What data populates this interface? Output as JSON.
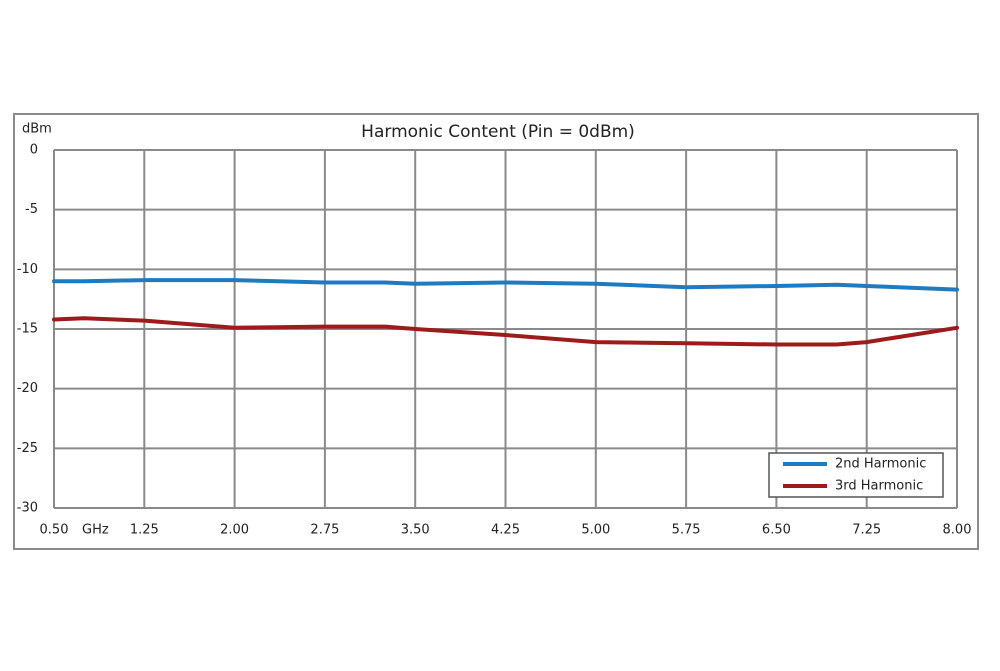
{
  "chart_data": {
    "type": "line",
    "title": "Harmonic Content (Pin = 0dBm)",
    "x_label": "GHz",
    "y_label": "dBm",
    "x": [
      0.5,
      0.75,
      1.25,
      2.0,
      2.75,
      3.25,
      3.5,
      4.25,
      5.0,
      5.75,
      6.5,
      7.0,
      7.25,
      8.0
    ],
    "series": [
      {
        "name": "2nd Harmonic",
        "color": "#1f7bc1",
        "values": [
          -11.0,
          -11.0,
          -10.9,
          -10.9,
          -11.1,
          -11.1,
          -11.2,
          -11.1,
          -11.2,
          -11.5,
          -11.4,
          -11.3,
          -11.4,
          -11.7
        ]
      },
      {
        "name": "3rd Harmonic",
        "color": "#9e1b1b",
        "values": [
          -14.2,
          -14.1,
          -14.3,
          -14.9,
          -14.8,
          -14.8,
          -15.0,
          -15.5,
          -16.1,
          -16.2,
          -16.3,
          -16.3,
          -16.1,
          -14.9
        ]
      }
    ],
    "xlim": [
      0.5,
      8.0
    ],
    "xticks": [
      {
        "value": 0.5,
        "label": "0.50"
      },
      {
        "value": 1.25,
        "label": "1.25"
      },
      {
        "value": 2.0,
        "label": "2.00"
      },
      {
        "value": 2.75,
        "label": "2.75"
      },
      {
        "value": 3.5,
        "label": "3.50"
      },
      {
        "value": 4.25,
        "label": "4.25"
      },
      {
        "value": 5.0,
        "label": "5.00"
      },
      {
        "value": 5.75,
        "label": "5.75"
      },
      {
        "value": 6.5,
        "label": "6.50"
      },
      {
        "value": 7.25,
        "label": "7.25"
      },
      {
        "value": 8.0,
        "label": "8.00"
      }
    ],
    "ylim": [
      -30,
      0
    ],
    "yticks": [
      0,
      -5,
      -10,
      -15,
      -20,
      -25,
      -30
    ],
    "grid": true,
    "legend": "lower right"
  }
}
